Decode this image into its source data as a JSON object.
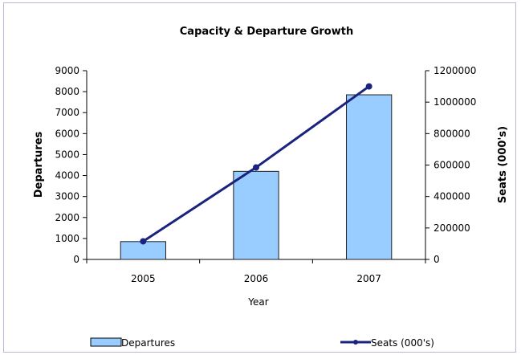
{
  "chart_data": {
    "type": "bar",
    "title": "Capacity & Departure Growth",
    "xlabel": "Year",
    "ylabel": "Departures",
    "y2label": "Seats (000's)",
    "categories": [
      "2005",
      "2006",
      "2007"
    ],
    "ylim": [
      0,
      9000
    ],
    "y2lim": [
      0,
      1200000
    ],
    "yticks": [
      0,
      1000,
      2000,
      3000,
      4000,
      5000,
      6000,
      7000,
      8000,
      9000
    ],
    "y2ticks": [
      0,
      200000,
      400000,
      600000,
      800000,
      1000000,
      1200000
    ],
    "grid": false,
    "legend_position": "bottom",
    "series": [
      {
        "name": "Departures",
        "kind": "bar",
        "axis": "left",
        "values": [
          850,
          4200,
          7850
        ],
        "color": "#99ccff"
      },
      {
        "name": "Seats (000's)",
        "kind": "line",
        "axis": "right",
        "values": [
          115000,
          585000,
          1100000
        ],
        "color": "#1a237e"
      }
    ]
  }
}
